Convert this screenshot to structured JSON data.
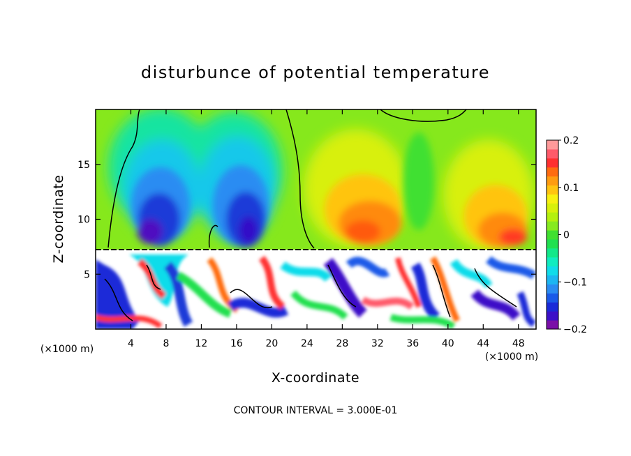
{
  "chart_data": {
    "type": "heatmap",
    "title": "disturbunce of potential temperature",
    "xlabel": "X-coordinate",
    "ylabel": "Z-coordinate",
    "x_unit": "(×1000 m)",
    "y_unit": "(×1000 m)",
    "footer": "CONTOUR INTERVAL = 3.000E-01",
    "xlim": [
      0,
      50
    ],
    "ylim": [
      0,
      20
    ],
    "x_ticks": [
      4,
      8,
      12,
      16,
      20,
      24,
      28,
      32,
      36,
      40,
      44,
      48
    ],
    "y_ticks": [
      5,
      10,
      15
    ],
    "colorbar": {
      "range": [
        -0.2,
        0.2
      ],
      "tick_labels": [
        "0.2",
        "0.1",
        "0",
        "−0.1",
        "−0.2"
      ],
      "tick_values": [
        0.2,
        0.1,
        0,
        -0.1,
        -0.2
      ],
      "colors": [
        "#7a10a8",
        "#3c10c8",
        "#1a2ad8",
        "#1a5ae8",
        "#2a8cf2",
        "#1cb6f2",
        "#10dcea",
        "#10ecc0",
        "#12e88a",
        "#20e050",
        "#40e030",
        "#86ea20",
        "#b4f00e",
        "#d8f00a",
        "#f8f010",
        "#ffc410",
        "#ff9c10",
        "#ff6c10",
        "#ff3030",
        "#ff5a6a",
        "#ff9a9a"
      ]
    },
    "features": [
      {
        "label": "cold anomaly",
        "x_center": 8,
        "z_center": 9.5,
        "value_min": -0.2
      },
      {
        "label": "cold anomaly",
        "x_center": 17,
        "z_center": 10,
        "value_min": -0.2
      },
      {
        "label": "warm anomaly",
        "x_center": 31,
        "z_center": 10,
        "value_max": 0.15
      },
      {
        "label": "warm anomaly",
        "x_center": 45,
        "z_center": 9.5,
        "value_max": 0.15
      },
      {
        "label": "turbulent layer",
        "z_range": [
          0,
          7.3
        ],
        "value_range": [
          -0.2,
          0.2
        ]
      }
    ]
  }
}
